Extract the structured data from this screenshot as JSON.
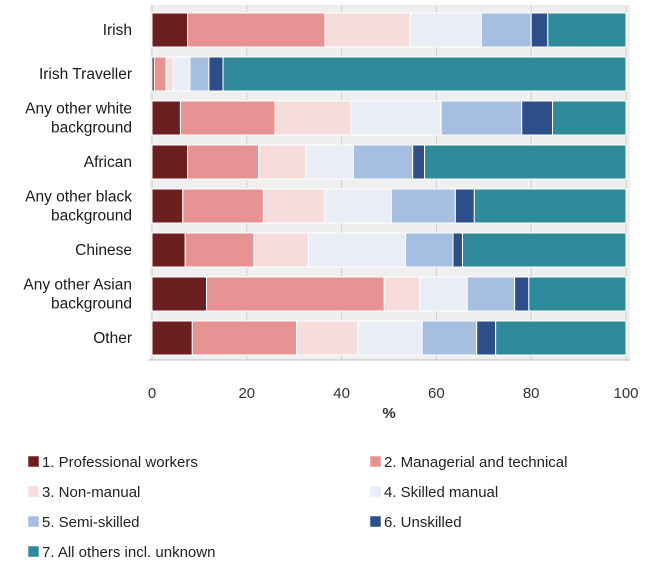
{
  "chart_data": {
    "type": "bar",
    "orientation": "horizontal",
    "stacked": true,
    "categories": [
      [
        "Irish"
      ],
      [
        "Irish Traveller"
      ],
      [
        "Any other white",
        "background"
      ],
      [
        "African"
      ],
      [
        "Any other black",
        "background"
      ],
      [
        "Chinese"
      ],
      [
        "Any other Asian",
        "background"
      ],
      [
        "Other"
      ]
    ],
    "series": [
      {
        "name": "1. Professional workers",
        "color": "#6b1f1f",
        "values": [
          7.5,
          0.5,
          6,
          7.5,
          6.5,
          7,
          11.5,
          8.5
        ]
      },
      {
        "name": "2. Managerial and technical",
        "color": "#e79393",
        "values": [
          29,
          2.5,
          20,
          15,
          17,
          14.5,
          37.5,
          22
        ]
      },
      {
        "name": "3. Non-manual",
        "color": "#f7dcdc",
        "values": [
          18,
          1.5,
          16,
          10,
          13,
          11.5,
          7.5,
          13
        ]
      },
      {
        "name": "4. Skilled manual",
        "color": "#e9eef6",
        "values": [
          15,
          3.5,
          19,
          10,
          14,
          20.5,
          10,
          13.5
        ]
      },
      {
        "name": "5. Semi-skilled",
        "color": "#a6bedf",
        "values": [
          10.5,
          4,
          17,
          12.5,
          13.5,
          10,
          10,
          11.5
        ]
      },
      {
        "name": "6. Unskilled",
        "color": "#2c4f8a",
        "values": [
          3.5,
          3,
          6.5,
          2.5,
          4,
          2,
          3,
          4
        ]
      },
      {
        "name": "7. All others incl. unknown",
        "color": "#2e8a9a",
        "values": [
          16.5,
          85,
          15.5,
          42.5,
          32,
          34.5,
          20.5,
          27.5
        ]
      }
    ],
    "xlabel": "%",
    "xlim": [
      0,
      100
    ],
    "xticks": [
      0,
      20,
      40,
      60,
      80,
      100
    ],
    "grid": true,
    "legend_position": "bottom"
  }
}
